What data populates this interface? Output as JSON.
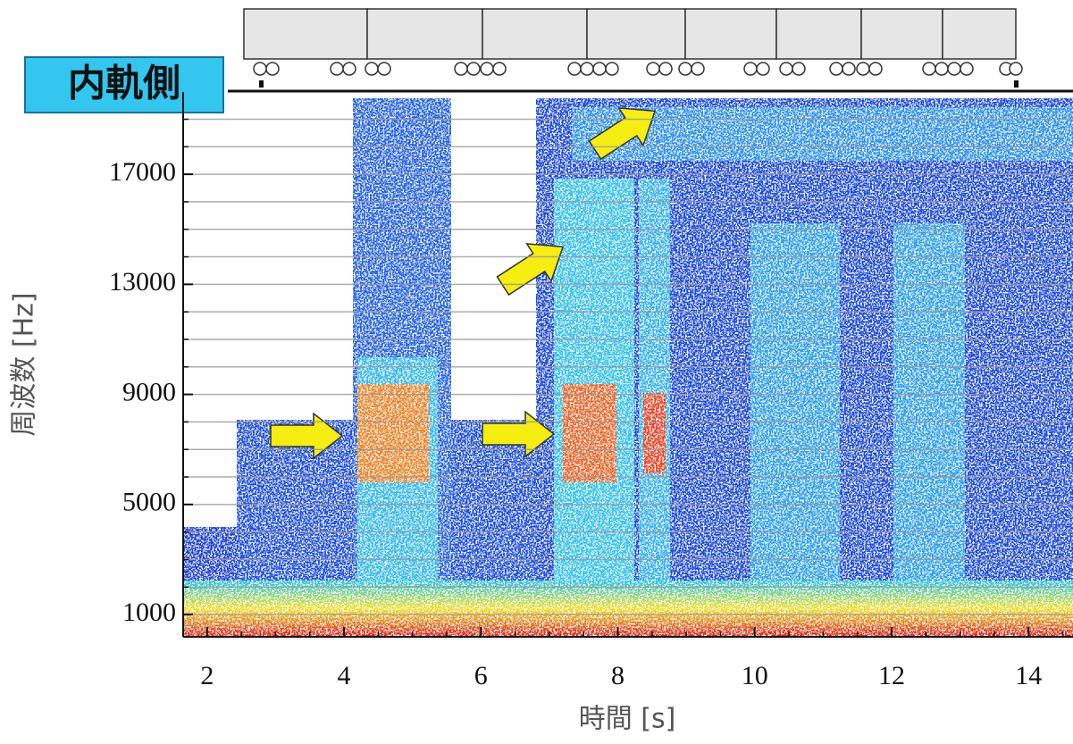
{
  "chart_data": {
    "type": "spectrogram",
    "annotations": [
      "内軌側"
    ],
    "xlabel": "時間 [s]",
    "ylabel": "周波数 [Hz]",
    "xlim": [
      1.65,
      14.65
    ],
    "ylim": [
      190,
      19990
    ],
    "xticks": [
      2,
      4,
      6,
      8,
      10,
      12,
      14
    ],
    "yticks": [
      1000,
      5000,
      9000,
      13000,
      17000
    ],
    "xminorticks": [
      2.5,
      3,
      3.5,
      4.5,
      5,
      5.5,
      6.5,
      7,
      7.5,
      8.5,
      9,
      9.5,
      10.5,
      11,
      11.5,
      12.5,
      13,
      13.5,
      14.5
    ],
    "yminorticks": [
      2000,
      3000,
      4000,
      6000,
      7000,
      8000,
      10000,
      11000,
      12000,
      14000,
      15000,
      16000,
      18000,
      19000
    ],
    "grid": true
  }
}
